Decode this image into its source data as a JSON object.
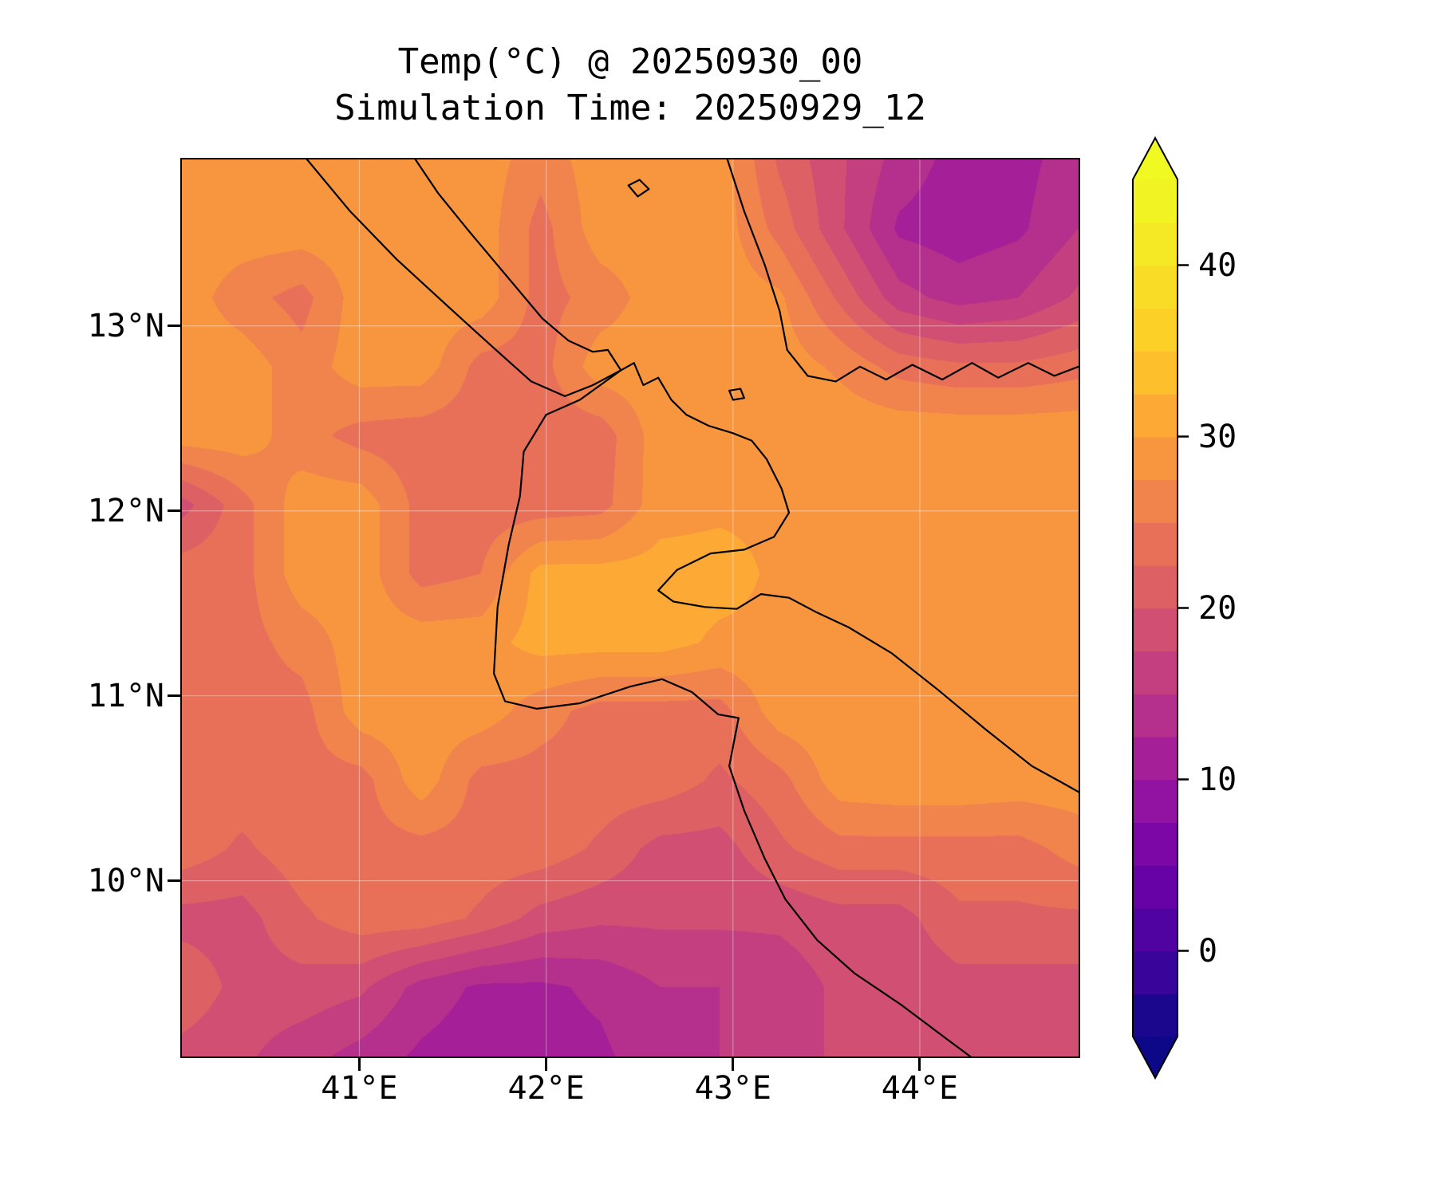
{
  "figure": {
    "background": "#ffffff"
  },
  "chart_data": {
    "type": "heatmap",
    "title": "Temp(°C) @ 20250930_00",
    "subtitle": "Simulation Time: 20250929_12",
    "description": "Filled-contour surface temperature map (plasma colormap) over the Horn of Africa / Gulf of Aden region with coastlines and country borders.",
    "extent": {
      "lon_min": 40.05,
      "lon_max": 44.85,
      "lat_min": 9.05,
      "lat_max": 13.9
    },
    "x_ticks": [
      {
        "value": 41,
        "label": "41°E"
      },
      {
        "value": 42,
        "label": "42°E"
      },
      {
        "value": 43,
        "label": "43°E"
      },
      {
        "value": 44,
        "label": "44°E"
      }
    ],
    "y_ticks": [
      {
        "value": 13,
        "label": "13°N"
      },
      {
        "value": 12,
        "label": "12°N"
      },
      {
        "value": 11,
        "label": "11°N"
      },
      {
        "value": 10,
        "label": "10°N"
      }
    ],
    "colorbar": {
      "vmin": -5,
      "vmax": 45,
      "level_step": 2.5,
      "extend": "both",
      "colormap": "plasma",
      "ticks": [
        {
          "value": 40,
          "label": "40"
        },
        {
          "value": 30,
          "label": "30"
        },
        {
          "value": 20,
          "label": "20"
        },
        {
          "value": 10,
          "label": "10"
        },
        {
          "value": 0,
          "label": "0"
        }
      ]
    },
    "colormap_anchors": [
      [
        0.0,
        "#0d0887"
      ],
      [
        0.1,
        "#46039f"
      ],
      [
        0.2,
        "#7201a8"
      ],
      [
        0.3,
        "#9c179e"
      ],
      [
        0.4,
        "#bd3786"
      ],
      [
        0.5,
        "#d8576b"
      ],
      [
        0.6,
        "#ed7953"
      ],
      [
        0.7,
        "#fb9f3a"
      ],
      [
        0.8,
        "#fdca26"
      ],
      [
        0.9,
        "#f7e225"
      ],
      [
        1.0,
        "#f0f921"
      ]
    ],
    "style": {
      "coastline_color": "#000000",
      "gridline_color": "#ffffff",
      "axes_edge_color": "#000000"
    },
    "grid": {
      "description": "Approximate temperature field (°C) on a 16-lon x 14-lat grid, rows ordered north to south; rendered with bilinear interpolation and 2.5 °C contour bins.",
      "lons": [
        40.05,
        40.37,
        40.69,
        41.01,
        41.33,
        41.65,
        41.97,
        42.29,
        42.61,
        42.93,
        43.25,
        43.57,
        43.89,
        44.21,
        44.53,
        44.85
      ],
      "lats": [
        13.9,
        13.53,
        13.15,
        12.78,
        12.41,
        12.03,
        11.66,
        11.28,
        10.91,
        10.54,
        10.16,
        9.79,
        9.42,
        9.05
      ],
      "temps_c": [
        [
          29,
          29,
          29,
          29,
          29,
          29,
          26,
          29,
          29,
          29,
          22,
          18,
          14,
          11.5,
          11.5,
          14
        ],
        [
          29,
          29,
          29,
          29,
          29,
          29,
          24,
          29,
          29,
          29,
          24,
          18,
          12,
          11,
          12,
          15
        ],
        [
          29,
          26,
          24,
          29,
          29,
          29,
          24,
          26,
          29,
          29,
          28,
          22,
          16,
          14,
          15,
          18
        ],
        [
          29,
          29,
          26,
          29,
          29,
          24,
          24,
          29,
          29,
          29,
          29,
          27,
          24,
          23,
          23,
          24
        ],
        [
          29,
          29,
          26,
          24,
          23.5,
          23.5,
          23.5,
          23.5,
          29,
          29,
          29.5,
          29.5,
          29.5,
          29.5,
          29.5,
          29.5
        ],
        [
          19,
          24,
          29,
          29,
          24,
          23.5,
          23.5,
          24,
          29,
          29.5,
          29.5,
          29.5,
          29.5,
          29.5,
          29.5,
          29.5
        ],
        [
          24,
          24,
          29,
          29,
          24,
          25,
          31,
          31,
          31,
          31,
          29.5,
          29.5,
          29.5,
          29.5,
          29.5,
          29.5
        ],
        [
          24,
          24,
          26,
          29,
          29,
          29,
          31,
          31,
          31,
          29.5,
          29.5,
          29.5,
          29.5,
          29.5,
          29.5,
          29.5
        ],
        [
          24,
          24,
          24,
          29,
          29,
          29,
          26,
          24,
          24,
          24,
          29,
          29.5,
          29.5,
          29.5,
          29.5,
          29.5
        ],
        [
          24,
          24,
          24,
          24,
          29,
          24,
          24,
          24,
          24,
          22,
          24,
          29,
          29.5,
          29.5,
          29,
          29
        ],
        [
          24,
          22,
          24,
          24,
          24,
          24,
          24,
          22,
          19,
          19,
          22,
          24,
          24,
          24,
          24,
          26
        ],
        [
          19,
          19,
          22,
          24,
          24,
          22,
          19,
          18,
          18,
          18,
          18,
          19,
          19,
          22,
          22,
          22
        ],
        [
          22,
          19,
          19,
          18,
          14,
          12,
          12,
          13,
          15,
          15,
          16,
          18,
          18,
          19,
          19,
          19
        ],
        [
          19,
          18,
          16,
          14,
          12,
          11,
          11.5,
          12,
          14,
          15,
          16,
          18,
          18,
          19,
          19,
          19
        ]
      ]
    },
    "coastlines": [
      {
        "name": "red-sea-african-coast-and-gulf-of-aden",
        "points": [
          [
            41.3,
            13.9
          ],
          [
            41.42,
            13.72
          ],
          [
            41.58,
            13.52
          ],
          [
            41.78,
            13.28
          ],
          [
            41.98,
            13.04
          ],
          [
            42.12,
            12.92
          ],
          [
            42.25,
            12.86
          ],
          [
            42.33,
            12.87
          ],
          [
            42.4,
            12.76
          ],
          [
            42.47,
            12.8
          ],
          [
            42.52,
            12.68
          ],
          [
            42.6,
            12.72
          ],
          [
            42.67,
            12.6
          ],
          [
            42.75,
            12.52
          ],
          [
            42.87,
            12.46
          ],
          [
            43.0,
            12.42
          ],
          [
            43.1,
            12.38
          ],
          [
            43.18,
            12.28
          ],
          [
            43.26,
            12.12
          ],
          [
            43.3,
            11.99
          ],
          [
            43.22,
            11.86
          ],
          [
            43.06,
            11.79
          ],
          [
            42.88,
            11.77
          ],
          [
            42.7,
            11.68
          ],
          [
            42.6,
            11.57
          ],
          [
            42.68,
            11.51
          ],
          [
            42.85,
            11.48
          ],
          [
            43.02,
            11.47
          ],
          [
            43.15,
            11.55
          ],
          [
            43.3,
            11.53
          ],
          [
            43.45,
            11.45
          ],
          [
            43.62,
            11.37
          ],
          [
            43.85,
            11.23
          ],
          [
            44.1,
            11.03
          ],
          [
            44.35,
            10.82
          ],
          [
            44.6,
            10.62
          ],
          [
            44.78,
            10.52
          ],
          [
            44.85,
            10.48
          ]
        ]
      },
      {
        "name": "yemen-coast",
        "points": [
          [
            42.97,
            13.9
          ],
          [
            43.06,
            13.62
          ],
          [
            43.17,
            13.33
          ],
          [
            43.25,
            13.08
          ],
          [
            43.29,
            12.87
          ],
          [
            43.4,
            12.73
          ],
          [
            43.55,
            12.7
          ],
          [
            43.68,
            12.78
          ],
          [
            43.82,
            12.71
          ],
          [
            43.96,
            12.79
          ],
          [
            44.12,
            12.71
          ],
          [
            44.28,
            12.8
          ],
          [
            44.42,
            12.72
          ],
          [
            44.58,
            12.8
          ],
          [
            44.72,
            12.73
          ],
          [
            44.85,
            12.78
          ]
        ]
      },
      {
        "name": "border-northwest",
        "points": [
          [
            40.72,
            13.9
          ],
          [
            40.95,
            13.62
          ],
          [
            41.2,
            13.36
          ],
          [
            41.48,
            13.1
          ],
          [
            41.72,
            12.88
          ],
          [
            41.92,
            12.7
          ],
          [
            42.1,
            12.62
          ],
          [
            42.25,
            12.68
          ],
          [
            42.4,
            12.76
          ]
        ]
      },
      {
        "name": "border-djibouti-west-south",
        "points": [
          [
            42.4,
            12.76
          ],
          [
            42.18,
            12.6
          ],
          [
            42.0,
            12.52
          ],
          [
            41.88,
            12.32
          ],
          [
            41.86,
            12.08
          ],
          [
            41.8,
            11.82
          ],
          [
            41.74,
            11.48
          ],
          [
            41.72,
            11.12
          ],
          [
            41.78,
            10.97
          ],
          [
            41.95,
            10.93
          ],
          [
            42.18,
            10.96
          ],
          [
            42.45,
            11.05
          ],
          [
            42.62,
            11.09
          ],
          [
            42.78,
            11.02
          ],
          [
            42.92,
            10.9
          ],
          [
            43.03,
            10.88
          ]
        ]
      },
      {
        "name": "border-ethiopia-somalia",
        "points": [
          [
            43.03,
            10.88
          ],
          [
            42.98,
            10.62
          ],
          [
            43.06,
            10.38
          ],
          [
            43.17,
            10.12
          ],
          [
            43.28,
            9.9
          ],
          [
            43.45,
            9.68
          ],
          [
            43.65,
            9.5
          ],
          [
            43.9,
            9.33
          ],
          [
            44.15,
            9.14
          ],
          [
            44.27,
            9.05
          ]
        ]
      },
      {
        "name": "island-small-north",
        "points": [
          [
            42.44,
            13.76
          ],
          [
            42.5,
            13.79
          ],
          [
            42.55,
            13.74
          ],
          [
            42.49,
            13.7
          ],
          [
            42.44,
            13.76
          ]
        ]
      },
      {
        "name": "island-at-strait",
        "points": [
          [
            42.98,
            12.65
          ],
          [
            43.04,
            12.66
          ],
          [
            43.06,
            12.61
          ],
          [
            43.0,
            12.6
          ],
          [
            42.98,
            12.65
          ]
        ]
      }
    ]
  }
}
